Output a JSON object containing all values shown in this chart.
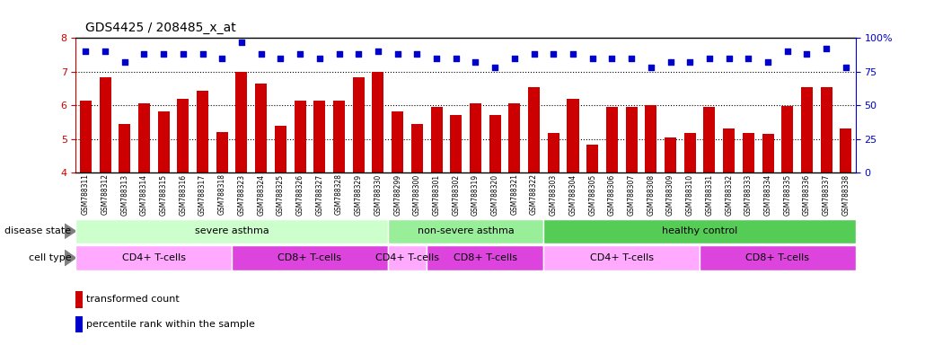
{
  "title": "GDS4425 / 208485_x_at",
  "samples": [
    "GSM788311",
    "GSM788312",
    "GSM788313",
    "GSM788314",
    "GSM788315",
    "GSM788316",
    "GSM788317",
    "GSM788318",
    "GSM788323",
    "GSM788324",
    "GSM788325",
    "GSM788326",
    "GSM788327",
    "GSM788328",
    "GSM788329",
    "GSM788330",
    "GSM788299",
    "GSM788300",
    "GSM788301",
    "GSM788302",
    "GSM788319",
    "GSM788320",
    "GSM788321",
    "GSM788322",
    "GSM788303",
    "GSM788304",
    "GSM788305",
    "GSM788306",
    "GSM788307",
    "GSM788308",
    "GSM788309",
    "GSM788310",
    "GSM788331",
    "GSM788332",
    "GSM788333",
    "GSM788334",
    "GSM788335",
    "GSM788336",
    "GSM788337",
    "GSM788338"
  ],
  "bar_values": [
    6.15,
    6.82,
    5.45,
    6.05,
    5.82,
    6.2,
    6.44,
    5.2,
    7.0,
    6.65,
    5.38,
    6.15,
    6.15,
    6.15,
    6.82,
    7.0,
    5.82,
    5.45,
    5.95,
    5.72,
    6.05,
    5.72,
    6.05,
    6.55,
    5.18,
    6.18,
    4.82,
    5.95,
    5.95,
    6.0,
    5.05,
    5.18,
    5.95,
    5.3,
    5.18,
    5.15,
    5.98,
    6.55,
    6.55,
    5.3
  ],
  "percentile_values": [
    90,
    90,
    82,
    88,
    88,
    88,
    88,
    85,
    97,
    88,
    85,
    88,
    85,
    88,
    88,
    90,
    88,
    88,
    85,
    85,
    82,
    78,
    85,
    88,
    88,
    88,
    85,
    85,
    85,
    78,
    82,
    82,
    85,
    85,
    85,
    82,
    90,
    88,
    92,
    78
  ],
  "bar_color": "#cc0000",
  "dot_color": "#0000cc",
  "ylim_left": [
    4,
    8
  ],
  "ylim_right": [
    0,
    100
  ],
  "yticks_left": [
    4,
    5,
    6,
    7,
    8
  ],
  "yticks_right": [
    0,
    25,
    50,
    75,
    100
  ],
  "dotted_lines": [
    5,
    6,
    7
  ],
  "disease_groups": [
    {
      "label": "severe asthma",
      "start": 0,
      "end": 16,
      "color": "#ccffcc"
    },
    {
      "label": "non-severe asthma",
      "start": 16,
      "end": 24,
      "color": "#99ee99"
    },
    {
      "label": "healthy control",
      "start": 24,
      "end": 40,
      "color": "#55cc55"
    }
  ],
  "cell_groups": [
    {
      "label": "CD4+ T-cells",
      "start": 0,
      "end": 8,
      "color": "#ffaaff"
    },
    {
      "label": "CD8+ T-cells",
      "start": 8,
      "end": 16,
      "color": "#dd44dd"
    },
    {
      "label": "CD4+ T-cells",
      "start": 16,
      "end": 18,
      "color": "#ffaaff"
    },
    {
      "label": "CD8+ T-cells",
      "start": 18,
      "end": 24,
      "color": "#dd44dd"
    },
    {
      "label": "CD4+ T-cells",
      "start": 24,
      "end": 32,
      "color": "#ffaaff"
    },
    {
      "label": "CD8+ T-cells",
      "start": 32,
      "end": 40,
      "color": "#dd44dd"
    }
  ],
  "ds_label": "disease state",
  "ct_label": "cell type",
  "legend_bar_label": "transformed count",
  "legend_dot_label": "percentile rank within the sample",
  "bar_width": 0.6,
  "title_fontsize": 10,
  "tick_fontsize": 8,
  "sample_fontsize": 5.5,
  "row_label_fontsize": 8,
  "legend_fontsize": 8
}
